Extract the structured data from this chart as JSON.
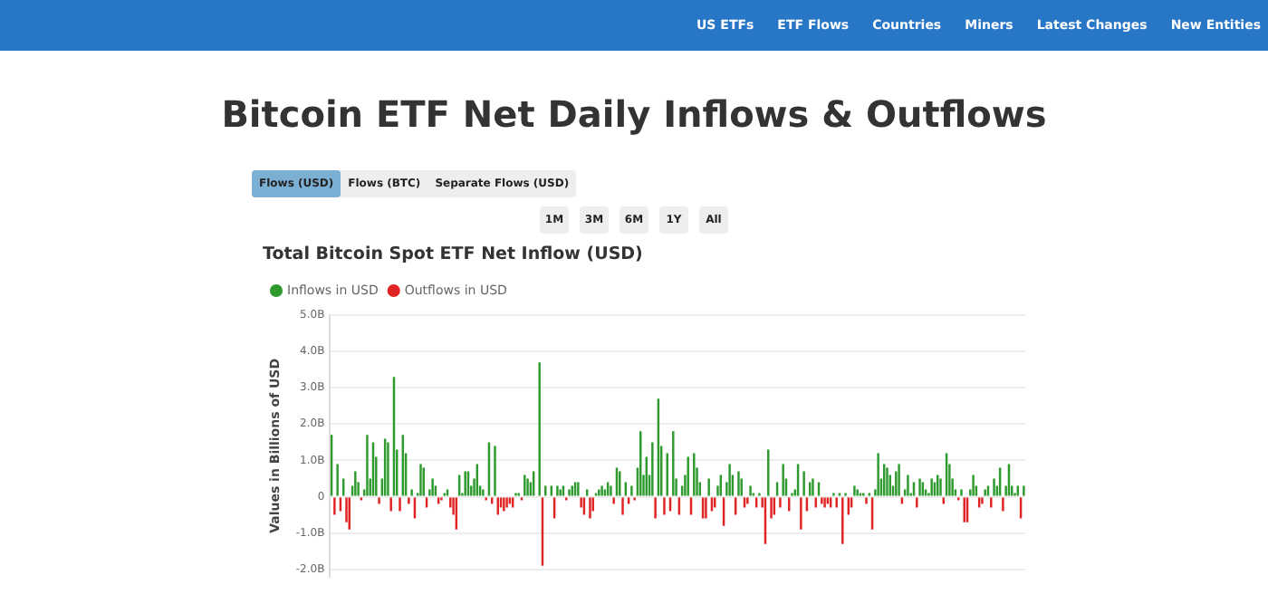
{
  "chart_data": {
    "type": "bar",
    "title": "Bitcoin ETF Net Daily Inflows & Outflows",
    "subtitle": "Total Bitcoin Spot ETF Net Inflow (USD)",
    "ylabel": "Values in Billions of USD",
    "annotations": [
      "US ETFs",
      "ETF Flows",
      "Countries",
      "Miners",
      "Latest Changes",
      "New Entities",
      "Flows (USD)",
      "Flows (BTC)",
      "Separate Flows (USD)",
      "1M",
      "3M",
      "6M",
      "1Y",
      "All"
    ],
    "categories": [
      null,
      null,
      null,
      null,
      null,
      null,
      null,
      null,
      null,
      null,
      null,
      null,
      null,
      null,
      null,
      null,
      null,
      null,
      null,
      null,
      null,
      null,
      null,
      null,
      null,
      null,
      null,
      null,
      null,
      null,
      null,
      null,
      null,
      null,
      null,
      null,
      null,
      null,
      null,
      null,
      null,
      null,
      null,
      null,
      null,
      null,
      null,
      null,
      null,
      null,
      null,
      null,
      null,
      null,
      null,
      null,
      null,
      null,
      null,
      null,
      null,
      null,
      null,
      null,
      null,
      null,
      null,
      null,
      null,
      null,
      null,
      null,
      null,
      null,
      null,
      null,
      null,
      null,
      null,
      null,
      null,
      null,
      null,
      null,
      null,
      null,
      null,
      null,
      null,
      null,
      null,
      null,
      null,
      null,
      null,
      null,
      null,
      null,
      null,
      null,
      null,
      null,
      null,
      null,
      null,
      null,
      null,
      null,
      null,
      null,
      null,
      null,
      null,
      null,
      null,
      null,
      null,
      null,
      null,
      null,
      null,
      null,
      null,
      null,
      null,
      null,
      null,
      null,
      null,
      null,
      null,
      null,
      null,
      null,
      null,
      null,
      null,
      null,
      null,
      null,
      null,
      null,
      null,
      null,
      null,
      null,
      null,
      null,
      null,
      null,
      null,
      null,
      null,
      null,
      null,
      null,
      null,
      null,
      null,
      null,
      null,
      null,
      null,
      null,
      null,
      null,
      null,
      null,
      null,
      null,
      null,
      null,
      null,
      null,
      null,
      null,
      null,
      null,
      null,
      null,
      null,
      null,
      null,
      null,
      null,
      null,
      null,
      null,
      null,
      null,
      null,
      null,
      null,
      null,
      null,
      null,
      null,
      null,
      null,
      null,
      null,
      null,
      null,
      null,
      null,
      null,
      null,
      null,
      null,
      null,
      null,
      null,
      null,
      null,
      null,
      null,
      null,
      null,
      null,
      null,
      null,
      null,
      null,
      null,
      null,
      null,
      null,
      null,
      null,
      null,
      null,
      null,
      null,
      null
    ],
    "series": [
      {
        "name": "Inflows in USD",
        "color": "#2e9a2e",
        "values": [
          1.7,
          null,
          0.9,
          null,
          0.5,
          null,
          null,
          0.3,
          0.7,
          0.4,
          null,
          0.2,
          1.7,
          0.5,
          1.5,
          1.1,
          null,
          0.5,
          1.6,
          1.5,
          null,
          3.3,
          1.3,
          null,
          1.7,
          1.2,
          null,
          0.2,
          null,
          0.1,
          0.9,
          0.8,
          null,
          0.2,
          0.5,
          0.3,
          null,
          null,
          0.1,
          0.2,
          null,
          null,
          null,
          0.6,
          0.1,
          0.7,
          0.7,
          0.3,
          0.5,
          0.9,
          0.3,
          0.2,
          null,
          1.5,
          null,
          1.4,
          null,
          null,
          null,
          null,
          null,
          null,
          0.1,
          0.1,
          null,
          0.6,
          0.5,
          0.4,
          0.7,
          null,
          3.7,
          null,
          0.3,
          null,
          0.3,
          null,
          0.3,
          0.2,
          0.3,
          null,
          0.2,
          0.3,
          0.4,
          0.4,
          null,
          null,
          0.2,
          null,
          null,
          0.1,
          0.2,
          0.3,
          0.2,
          0.4,
          0.3,
          null,
          0.8,
          0.7,
          null,
          0.4,
          null,
          0.3,
          null,
          0.8,
          1.8,
          0.6,
          1.1,
          0.6,
          1.5,
          null,
          2.7,
          1.4,
          null,
          1.2,
          null,
          1.8,
          0.5,
          null,
          0.3,
          0.6,
          1.1,
          null,
          1.2,
          0.8,
          0.4,
          null,
          null,
          0.5,
          null,
          null,
          0.3,
          0.6,
          null,
          0.4,
          0.9,
          0.6,
          null,
          0.7,
          0.5,
          null,
          null,
          0.3,
          0.1,
          null,
          0.1,
          null,
          null,
          1.3,
          null,
          null,
          0.4,
          null,
          0.9,
          0.5,
          null,
          0.1,
          0.2,
          0.9,
          null,
          0.7,
          null,
          0.4,
          0.5,
          null,
          0.4,
          null,
          null,
          null,
          null,
          0.1,
          null,
          0.1,
          null,
          0.1,
          null,
          null,
          0.3,
          0.2,
          0.1,
          0.1,
          null,
          0.1,
          null,
          0.2,
          1.2,
          0.5,
          0.9,
          0.8,
          0.6,
          0.3,
          0.7,
          0.9,
          null,
          0.2,
          0.6,
          0.1,
          0.4,
          null,
          0.5,
          0.4,
          0.2,
          0.1,
          0.5,
          0.4,
          0.6,
          0.5,
          null,
          1.2,
          0.9,
          0.5,
          0.2,
          null,
          0.2,
          null,
          null,
          0.2,
          0.6,
          0.3,
          null,
          null,
          0.2,
          0.3,
          null,
          0.5,
          0.3,
          0.8,
          null,
          0.3,
          0.9,
          0.3,
          0.1,
          0.3,
          null,
          0.3
        ]
      },
      {
        "name": "Outflows in USD",
        "color": "#e02424",
        "values": [
          null,
          -0.5,
          null,
          -0.4,
          null,
          -0.7,
          -0.9,
          null,
          null,
          null,
          -0.1,
          null,
          null,
          null,
          null,
          null,
          -0.2,
          null,
          null,
          null,
          -0.4,
          null,
          null,
          -0.4,
          null,
          null,
          -0.2,
          null,
          -0.6,
          null,
          null,
          null,
          -0.3,
          null,
          null,
          null,
          -0.2,
          -0.1,
          null,
          null,
          -0.3,
          -0.5,
          -0.9,
          null,
          null,
          null,
          null,
          null,
          null,
          null,
          null,
          null,
          -0.1,
          null,
          -0.2,
          null,
          -0.5,
          -0.3,
          -0.4,
          -0.3,
          -0.2,
          -0.3,
          null,
          null,
          -0.1,
          null,
          null,
          null,
          null,
          null,
          null,
          -1.9,
          null,
          null,
          null,
          -0.6,
          null,
          null,
          null,
          -0.1,
          null,
          null,
          null,
          null,
          -0.3,
          -0.5,
          null,
          -0.6,
          -0.4,
          null,
          null,
          null,
          null,
          null,
          null,
          -0.2,
          null,
          null,
          -0.5,
          null,
          -0.2,
          null,
          -0.1,
          null,
          null,
          null,
          null,
          null,
          null,
          -0.6,
          null,
          null,
          -0.5,
          null,
          -0.4,
          null,
          null,
          -0.5,
          null,
          null,
          null,
          -0.5,
          null,
          null,
          null,
          -0.6,
          -0.6,
          null,
          -0.4,
          -0.3,
          null,
          null,
          -0.8,
          null,
          null,
          null,
          -0.5,
          null,
          null,
          -0.3,
          -0.2,
          null,
          null,
          -0.3,
          null,
          -0.3,
          -1.3,
          null,
          -0.6,
          -0.5,
          null,
          -0.3,
          null,
          null,
          -0.4,
          null,
          null,
          null,
          -0.9,
          null,
          -0.4,
          null,
          null,
          -0.3,
          null,
          -0.2,
          -0.3,
          -0.2,
          -0.3,
          null,
          -0.3,
          null,
          -1.3,
          null,
          -0.5,
          -0.3,
          null,
          null,
          null,
          null,
          -0.2,
          null,
          -0.9,
          null,
          null,
          null,
          null,
          null,
          null,
          null,
          null,
          null,
          -0.2,
          null,
          null,
          null,
          null,
          -0.3,
          null,
          null,
          null,
          null,
          null,
          null,
          null,
          null,
          -0.2,
          null,
          null,
          null,
          null,
          -0.1,
          null,
          -0.7,
          -0.7,
          null,
          null,
          null,
          -0.3,
          -0.2,
          null,
          null,
          -0.3,
          null,
          null,
          null,
          -0.4,
          null,
          null,
          null,
          null,
          null,
          -0.6,
          null
        ]
      }
    ],
    "stacked": true,
    "ylim": [
      -2.2,
      5
    ],
    "yticks": [
      {
        "value": -2,
        "label": "-2.0B"
      },
      {
        "value": -1,
        "label": "-1.0B"
      },
      0,
      {
        "value": 1,
        "label": "1.0B"
      },
      {
        "value": 2,
        "label": "2.0B"
      },
      {
        "value": 3,
        "label": "3.0B"
      },
      {
        "value": 4,
        "label": "4.0B"
      },
      {
        "value": 5,
        "label": "5.0B"
      }
    ],
    "grid": "y",
    "legend": "top left",
    "tick_labels": "y"
  }
}
